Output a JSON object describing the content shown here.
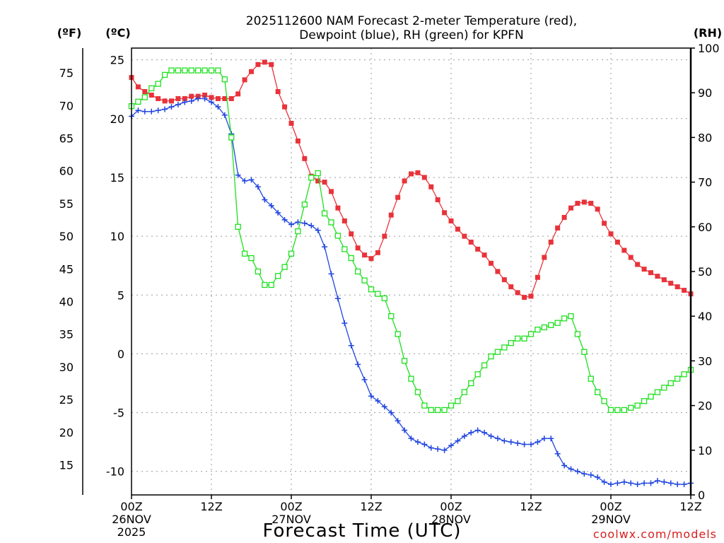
{
  "chart_data": {
    "type": "line",
    "title_line1": "2025112600 NAM Forecast 2-meter Temperature (red),",
    "title_line2": "Dewpoint (blue), RH (green) for KPFN",
    "left_unit_f": "(ºF)",
    "left_unit_c": "(ºC)",
    "right_unit": "(RH)",
    "xlabel": "Forecast Time (UTC)",
    "credit": "coolwx.com/models",
    "x_range_hours": [
      0,
      84
    ],
    "c_range": [
      -12,
      26
    ],
    "rh_range": [
      0,
      100
    ],
    "x_ticks": [
      {
        "hour": 0,
        "lines": [
          "00Z",
          "26NOV",
          "2025"
        ]
      },
      {
        "hour": 12,
        "lines": [
          "12Z"
        ]
      },
      {
        "hour": 24,
        "lines": [
          "00Z",
          "27NOV"
        ]
      },
      {
        "hour": 36,
        "lines": [
          "12Z"
        ]
      },
      {
        "hour": 48,
        "lines": [
          "00Z",
          "28NOV"
        ]
      },
      {
        "hour": 60,
        "lines": [
          "12Z"
        ]
      },
      {
        "hour": 72,
        "lines": [
          "00Z",
          "29NOV"
        ]
      },
      {
        "hour": 84,
        "lines": [
          "12Z"
        ]
      }
    ],
    "c_ticks": [
      "-10",
      "-5",
      "0",
      "5",
      "10",
      "15",
      "20",
      "25"
    ],
    "f_ticks": [
      "15",
      "20",
      "25",
      "30",
      "35",
      "40",
      "45",
      "50",
      "55",
      "60",
      "65",
      "70",
      "75"
    ],
    "rh_ticks": [
      "0",
      "10",
      "20",
      "30",
      "40",
      "50",
      "60",
      "70",
      "80",
      "90",
      "100"
    ],
    "series": [
      {
        "name": "2-meter Temperature",
        "unit": "C",
        "axis": "left",
        "color": "#e8333a",
        "marker": "square-filled",
        "x": [
          0,
          1,
          2,
          3,
          4,
          5,
          6,
          7,
          8,
          9,
          10,
          11,
          12,
          13,
          14,
          15,
          16,
          17,
          18,
          19,
          20,
          21,
          22,
          23,
          24,
          25,
          26,
          27,
          28,
          29,
          30,
          31,
          32,
          33,
          34,
          35,
          36,
          37,
          38,
          39,
          40,
          41,
          42,
          43,
          44,
          45,
          46,
          47,
          48,
          49,
          50,
          51,
          52,
          53,
          54,
          55,
          56,
          57,
          58,
          59,
          60,
          61,
          62,
          63,
          64,
          65,
          66,
          67,
          68,
          69,
          70,
          71,
          72,
          73,
          74,
          75,
          76,
          77,
          78,
          79,
          80,
          81,
          82,
          83,
          84
        ],
        "values": [
          23.5,
          22.7,
          22.3,
          22.0,
          21.7,
          21.5,
          21.5,
          21.7,
          21.7,
          21.9,
          21.9,
          22.0,
          21.8,
          21.7,
          21.7,
          21.7,
          22.1,
          23.3,
          24.0,
          24.6,
          24.8,
          24.6,
          22.3,
          21.0,
          19.6,
          18.1,
          16.6,
          15.1,
          14.7,
          14.6,
          13.8,
          12.4,
          11.3,
          10.2,
          9.0,
          8.4,
          8.1,
          8.6,
          10.0,
          11.8,
          13.3,
          14.7,
          15.3,
          15.4,
          15.0,
          14.2,
          13.1,
          12.0,
          11.3,
          10.6,
          10.0,
          9.5,
          8.9,
          8.4,
          7.7,
          7.0,
          6.3,
          5.7,
          5.2,
          4.8,
          4.9,
          6.5,
          8.2,
          9.5,
          10.7,
          11.6,
          12.4,
          12.8,
          12.9,
          12.8,
          12.3,
          11.1,
          10.2,
          9.5,
          8.8,
          8.2,
          7.6,
          7.2,
          6.9,
          6.6,
          6.3,
          6.0,
          5.7,
          5.4,
          5.1
        ]
      },
      {
        "name": "Dewpoint",
        "unit": "C",
        "axis": "left",
        "color": "#2146e0",
        "marker": "plus",
        "x": [
          0,
          1,
          2,
          3,
          4,
          5,
          6,
          7,
          8,
          9,
          10,
          11,
          12,
          13,
          14,
          15,
          16,
          17,
          18,
          19,
          20,
          21,
          22,
          23,
          24,
          25,
          26,
          27,
          28,
          29,
          30,
          31,
          32,
          33,
          34,
          35,
          36,
          37,
          38,
          39,
          40,
          41,
          42,
          43,
          44,
          45,
          46,
          47,
          48,
          49,
          50,
          51,
          52,
          53,
          54,
          55,
          56,
          57,
          58,
          59,
          60,
          61,
          62,
          63,
          64,
          65,
          66,
          67,
          68,
          69,
          70,
          71,
          72,
          73,
          74,
          75,
          76,
          77,
          78,
          79,
          80,
          81,
          82,
          83,
          84
        ],
        "values": [
          20.2,
          20.7,
          20.6,
          20.6,
          20.7,
          20.8,
          21.0,
          21.2,
          21.4,
          21.5,
          21.7,
          21.7,
          21.4,
          21.0,
          20.3,
          18.7,
          15.2,
          14.7,
          14.8,
          14.2,
          13.1,
          12.6,
          12.0,
          11.4,
          11.0,
          11.2,
          11.1,
          10.9,
          10.5,
          9.1,
          6.8,
          4.7,
          2.6,
          0.7,
          -0.9,
          -2.2,
          -3.6,
          -4.0,
          -4.5,
          -5.0,
          -5.7,
          -6.5,
          -7.2,
          -7.5,
          -7.7,
          -8.0,
          -8.1,
          -8.2,
          -7.8,
          -7.4,
          -7.0,
          -6.7,
          -6.5,
          -6.7,
          -7.0,
          -7.2,
          -7.4,
          -7.5,
          -7.6,
          -7.7,
          -7.7,
          -7.5,
          -7.2,
          -7.2,
          -8.5,
          -9.5,
          -9.8,
          -10.0,
          -10.2,
          -10.3,
          -10.5,
          -10.9,
          -11.1,
          -11.0,
          -10.9,
          -11.0,
          -11.1,
          -11.0,
          -11.0,
          -10.8,
          -10.9,
          -11.0,
          -11.1,
          -11.1,
          -11.0
        ]
      },
      {
        "name": "RH",
        "unit": "%",
        "axis": "right",
        "color": "#1ee01e",
        "marker": "square-open",
        "x": [
          0,
          1,
          2,
          3,
          4,
          5,
          6,
          7,
          8,
          9,
          10,
          11,
          12,
          13,
          14,
          15,
          16,
          17,
          18,
          19,
          20,
          21,
          22,
          23,
          24,
          25,
          26,
          27,
          28,
          29,
          30,
          31,
          32,
          33,
          34,
          35,
          36,
          37,
          38,
          39,
          40,
          41,
          42,
          43,
          44,
          45,
          46,
          47,
          48,
          49,
          50,
          51,
          52,
          53,
          54,
          55,
          56,
          57,
          58,
          59,
          60,
          61,
          62,
          63,
          64,
          65,
          66,
          67,
          68,
          69,
          70,
          71,
          72,
          73,
          74,
          75,
          76,
          77,
          78,
          79,
          80,
          81,
          82,
          83,
          84
        ],
        "values": [
          87,
          88,
          89,
          91,
          92,
          94,
          95,
          95,
          95,
          95,
          95,
          95,
          95,
          95,
          93,
          80,
          60,
          54,
          53,
          50,
          47,
          47,
          49,
          51,
          54,
          59,
          65,
          71,
          72,
          63,
          61,
          58,
          55,
          53,
          50,
          48,
          46,
          45,
          44,
          40,
          36,
          30,
          26,
          23,
          20,
          19,
          19,
          19,
          20,
          21,
          23,
          25,
          27,
          29,
          31,
          32,
          33,
          34,
          35,
          35,
          36,
          37,
          37.5,
          38,
          38.5,
          39.5,
          40,
          36,
          32,
          26,
          23,
          21,
          19,
          19,
          19,
          19.5,
          20,
          21,
          22,
          23,
          24,
          25,
          26,
          27,
          28
        ]
      }
    ]
  }
}
